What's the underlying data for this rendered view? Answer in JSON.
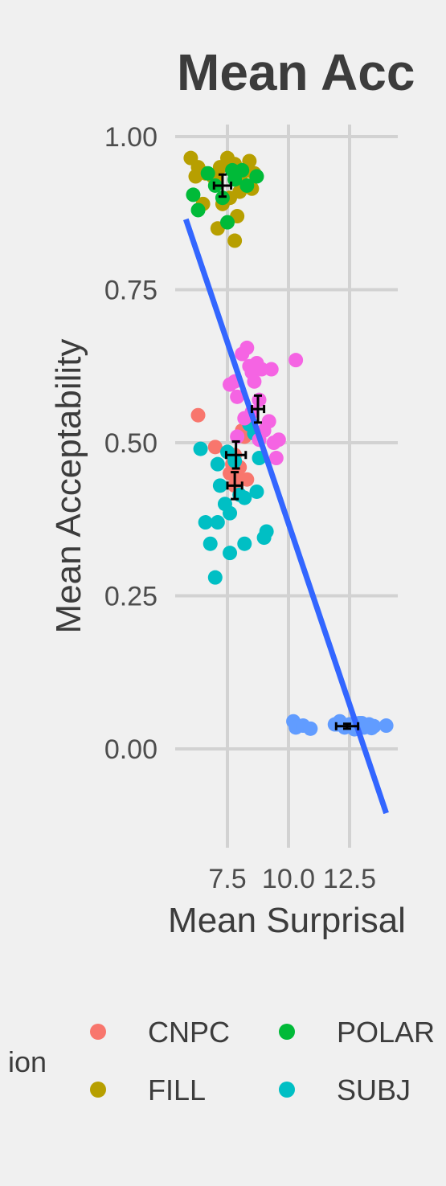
{
  "chart_data": {
    "type": "scatter",
    "title": "Mean Acc",
    "xlabel": "Mean Surprisal",
    "ylabel": "Mean Acceptability",
    "x_ticks": [
      7.5,
      10.0,
      12.5
    ],
    "x_tick_labels": [
      "7.5",
      "10.0",
      "12.5"
    ],
    "y_ticks": [
      0.0,
      0.25,
      0.5,
      0.75,
      1.0
    ],
    "y_tick_labels": [
      "0.00",
      "0.25",
      "0.50",
      "0.75",
      "1.00"
    ],
    "xlim": [
      4.3,
      15.4
    ],
    "ylim": [
      -0.14,
      1.08
    ],
    "grid": true,
    "legend_title": "ion",
    "legend_position": "bottom",
    "series": [
      {
        "name": "CNPC",
        "color": "#f8766d",
        "points": [
          [
            6.3,
            0.545
          ],
          [
            7.0,
            0.493
          ],
          [
            7.6,
            0.45
          ],
          [
            7.8,
            0.48
          ],
          [
            7.9,
            0.445
          ],
          [
            8.0,
            0.46
          ],
          [
            8.1,
            0.52
          ],
          [
            8.3,
            0.44
          ],
          [
            7.8,
            0.43
          ],
          [
            8.2,
            0.51
          ],
          [
            7.7,
            0.465
          ]
        ]
      },
      {
        "name": "FILL",
        "color": "#b79f00",
        "points": [
          [
            6.0,
            0.965
          ],
          [
            6.3,
            0.95
          ],
          [
            6.6,
            0.94
          ],
          [
            6.9,
            0.935
          ],
          [
            7.2,
            0.95
          ],
          [
            7.5,
            0.965
          ],
          [
            7.8,
            0.955
          ],
          [
            8.1,
            0.94
          ],
          [
            8.4,
            0.96
          ],
          [
            8.6,
            0.94
          ],
          [
            6.5,
            0.89
          ],
          [
            7.1,
            0.85
          ],
          [
            7.3,
            0.89
          ],
          [
            7.6,
            0.9
          ],
          [
            7.8,
            0.83
          ],
          [
            7.9,
            0.87
          ],
          [
            8.0,
            0.91
          ],
          [
            8.5,
            0.915
          ],
          [
            7.0,
            0.93
          ],
          [
            6.2,
            0.935
          ]
        ]
      },
      {
        "name": "POLAR",
        "color": "#00ba38",
        "points": [
          [
            6.1,
            0.905
          ],
          [
            6.3,
            0.88
          ],
          [
            6.7,
            0.94
          ],
          [
            7.0,
            0.92
          ],
          [
            7.3,
            0.9
          ],
          [
            7.5,
            0.86
          ],
          [
            7.8,
            0.93
          ],
          [
            8.1,
            0.945
          ],
          [
            8.3,
            0.92
          ],
          [
            8.7,
            0.935
          ],
          [
            7.7,
            0.945
          ]
        ]
      },
      {
        "name": "SUBJ",
        "color": "#00bfc4",
        "points": [
          [
            6.4,
            0.49
          ],
          [
            6.6,
            0.37
          ],
          [
            6.8,
            0.335
          ],
          [
            7.0,
            0.28
          ],
          [
            7.1,
            0.37
          ],
          [
            7.2,
            0.43
          ],
          [
            7.1,
            0.465
          ],
          [
            7.4,
            0.4
          ],
          [
            7.6,
            0.385
          ],
          [
            7.6,
            0.32
          ],
          [
            7.8,
            0.47
          ],
          [
            8.0,
            0.415
          ],
          [
            8.2,
            0.41
          ],
          [
            8.2,
            0.335
          ],
          [
            8.6,
            0.515
          ],
          [
            8.7,
            0.42
          ],
          [
            8.8,
            0.475
          ],
          [
            9.0,
            0.345
          ],
          [
            9.1,
            0.355
          ],
          [
            7.5,
            0.485
          ],
          [
            8.4,
            0.53
          ]
        ]
      },
      {
        "name": "",
        "color": "#619cff",
        "points": [
          [
            10.2,
            0.045
          ],
          [
            10.3,
            0.035
          ],
          [
            10.6,
            0.038
          ],
          [
            10.9,
            0.033
          ],
          [
            11.9,
            0.04
          ],
          [
            12.1,
            0.045
          ],
          [
            12.3,
            0.035
          ],
          [
            12.5,
            0.04
          ],
          [
            12.7,
            0.032
          ],
          [
            12.9,
            0.042
          ],
          [
            13.1,
            0.035
          ],
          [
            13.3,
            0.04
          ],
          [
            13.5,
            0.037
          ],
          [
            14.0,
            0.038
          ],
          [
            12.0,
            0.04
          ],
          [
            13.0,
            0.042
          ],
          [
            13.4,
            0.034
          ],
          [
            12.6,
            0.038
          ]
        ]
      },
      {
        "name": "",
        "color": "#f564e3",
        "points": [
          [
            7.6,
            0.595
          ],
          [
            7.8,
            0.6
          ],
          [
            7.9,
            0.575
          ],
          [
            8.1,
            0.645
          ],
          [
            8.3,
            0.655
          ],
          [
            8.4,
            0.625
          ],
          [
            8.5,
            0.615
          ],
          [
            8.6,
            0.6
          ],
          [
            8.7,
            0.63
          ],
          [
            8.9,
            0.62
          ],
          [
            9.3,
            0.62
          ],
          [
            9.2,
            0.535
          ],
          [
            9.4,
            0.5
          ],
          [
            9.6,
            0.505
          ],
          [
            9.5,
            0.475
          ],
          [
            10.3,
            0.635
          ],
          [
            8.8,
            0.57
          ],
          [
            9.0,
            0.52
          ],
          [
            8.2,
            0.54
          ],
          [
            8.5,
            0.55
          ],
          [
            7.9,
            0.51
          ],
          [
            8.8,
            0.505
          ]
        ]
      }
    ],
    "summary_points": [
      {
        "x": 7.3,
        "y": 0.92,
        "xerr": 0.35,
        "yerr": 0.018
      },
      {
        "x": 7.85,
        "y": 0.48,
        "xerr": 0.4,
        "yerr": 0.022
      },
      {
        "x": 7.8,
        "y": 0.43,
        "xerr": 0.3,
        "yerr": 0.022
      },
      {
        "x": 8.75,
        "y": 0.555,
        "xerr": 0.25,
        "yerr": 0.022
      },
      {
        "x": 12.4,
        "y": 0.037,
        "xerr": 0.45,
        "yerr": 0.004
      }
    ],
    "trend_line": {
      "color": "#3366ff",
      "x": [
        5.8,
        14.0
      ],
      "y": [
        0.865,
        -0.105
      ]
    },
    "legend_entries": [
      {
        "label": "CNPC",
        "color": "#f8766d"
      },
      {
        "label": "POLAR",
        "color": "#00ba38"
      },
      {
        "label": "FILL",
        "color": "#b79f00"
      },
      {
        "label": "SUBJ",
        "color": "#00bfc4"
      }
    ]
  }
}
